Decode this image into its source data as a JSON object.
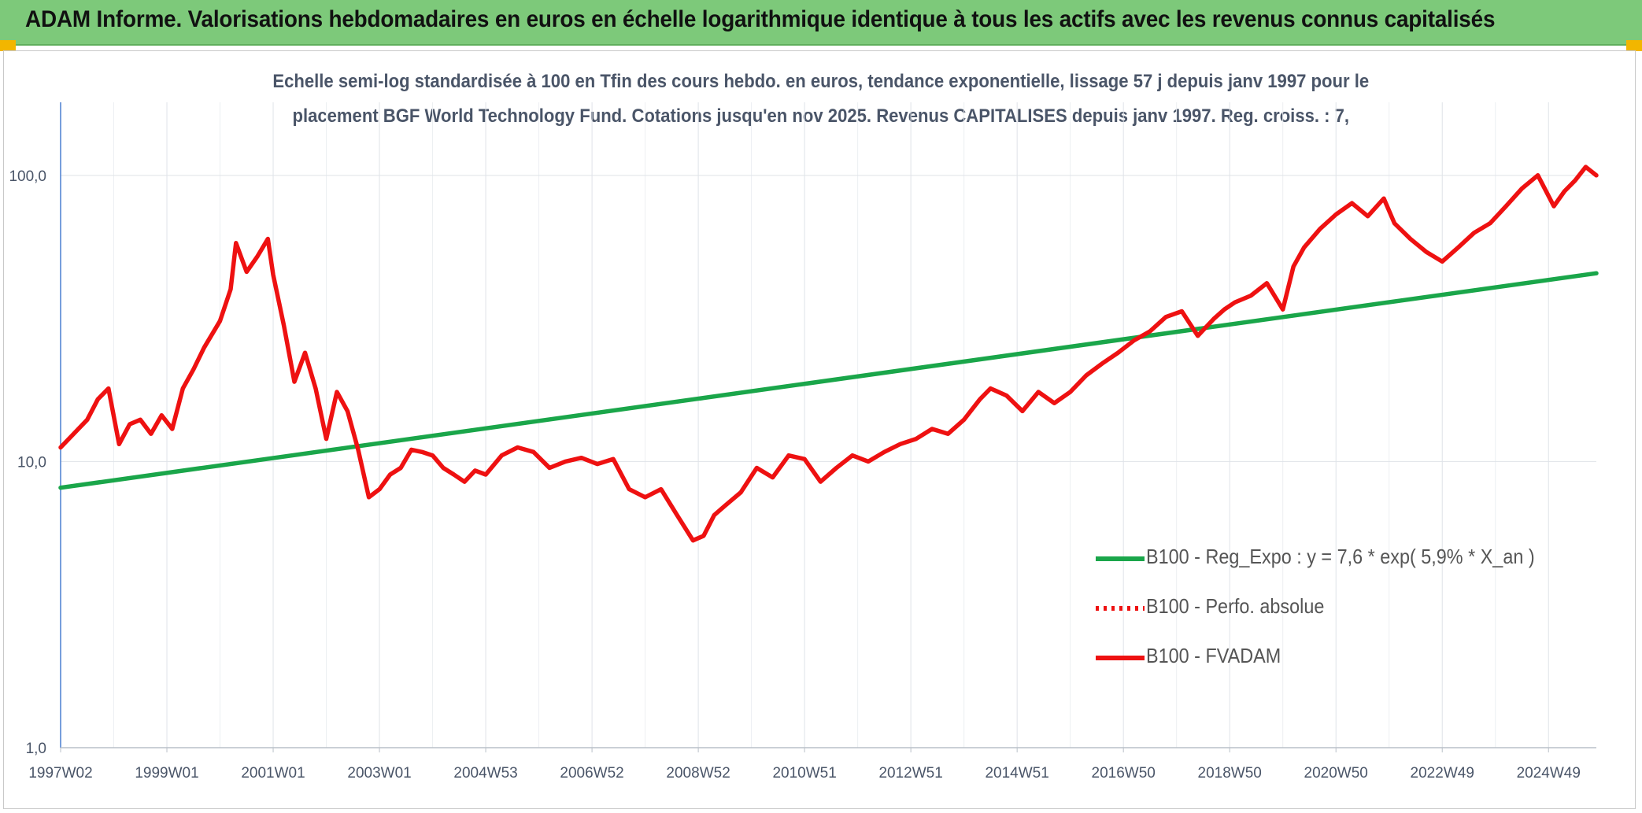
{
  "header": {
    "title": "ADAM Informe. Valorisations hebdomadaires en euros en échelle logarithmique identique à tous les actifs avec les revenus connus capitalisés"
  },
  "colors": {
    "banner": "#7dc97a",
    "green_series": "#1aa64a",
    "red_series": "#ee1111",
    "corner_marks": "#f2b600"
  },
  "chart_data": {
    "type": "line",
    "title_line1": "Echelle semi-log standardisée à 100 en Tfin des cours hebdo. en euros, tendance exponentielle, lissage 57 j depuis janv 1997 pour le",
    "title_line2": "placement BGF World Technology Fund. Cotations jusqu'en nov 2025. Revenus CAPITALISES depuis janv 1997. Reg. croiss. : 7,",
    "y_scale": "log",
    "ylim": [
      1,
      180
    ],
    "y_ticks": [
      {
        "value": 1,
        "label": "1,0"
      },
      {
        "value": 10,
        "label": "10,0"
      },
      {
        "value": 100,
        "label": "100,0"
      }
    ],
    "x_range_years": [
      1997.0,
      2025.9
    ],
    "x_ticks": [
      {
        "year": 1997.0,
        "label": "1997W02"
      },
      {
        "year": 1999.0,
        "label": "1999W01"
      },
      {
        "year": 2001.0,
        "label": "2001W01"
      },
      {
        "year": 2003.0,
        "label": "2003W01"
      },
      {
        "year": 2005.0,
        "label": "2004W53"
      },
      {
        "year": 2007.0,
        "label": "2006W52"
      },
      {
        "year": 2009.0,
        "label": "2008W52"
      },
      {
        "year": 2011.0,
        "label": "2010W51"
      },
      {
        "year": 2013.0,
        "label": "2012W51"
      },
      {
        "year": 2015.0,
        "label": "2014W51"
      },
      {
        "year": 2017.0,
        "label": "2016W50"
      },
      {
        "year": 2019.0,
        "label": "2018W50"
      },
      {
        "year": 2021.0,
        "label": "2020W50"
      },
      {
        "year": 2023.0,
        "label": "2022W49"
      },
      {
        "year": 2025.0,
        "label": "2024W49"
      }
    ],
    "grid": true,
    "legend_position": "lower-right",
    "series": [
      {
        "name": "B100 - Reg_Expo : y = 7,6 * exp( 5,9% *  X_an )",
        "color": "#1aa64a",
        "style": "solid",
        "x": [
          1997.0,
          2025.9
        ],
        "y": [
          8.1,
          45.5
        ]
      },
      {
        "name": "B100 - Perfo. absolue",
        "color": "#ee1111",
        "style": "dotted",
        "x": [],
        "y": []
      },
      {
        "name": "B100 - FVADAM",
        "color": "#ee1111",
        "style": "solid",
        "x": [
          1997.0,
          1997.3,
          1997.5,
          1997.7,
          1997.9,
          1998.1,
          1998.3,
          1998.5,
          1998.7,
          1998.9,
          1999.1,
          1999.3,
          1999.5,
          1999.7,
          2000.0,
          2000.2,
          2000.3,
          2000.5,
          2000.7,
          2000.9,
          2001.0,
          2001.2,
          2001.4,
          2001.6,
          2001.8,
          2002.0,
          2002.2,
          2002.4,
          2002.6,
          2002.8,
          2003.0,
          2003.2,
          2003.4,
          2003.6,
          2003.8,
          2004.0,
          2004.2,
          2004.4,
          2004.6,
          2004.8,
          2005.0,
          2005.3,
          2005.6,
          2005.9,
          2006.2,
          2006.5,
          2006.8,
          2007.1,
          2007.4,
          2007.7,
          2008.0,
          2008.3,
          2008.6,
          2008.9,
          2009.1,
          2009.3,
          2009.5,
          2009.8,
          2010.1,
          2010.4,
          2010.7,
          2011.0,
          2011.3,
          2011.6,
          2011.9,
          2012.2,
          2012.5,
          2012.8,
          2013.1,
          2013.4,
          2013.7,
          2014.0,
          2014.3,
          2014.5,
          2014.8,
          2015.1,
          2015.4,
          2015.7,
          2016.0,
          2016.3,
          2016.6,
          2016.9,
          2017.2,
          2017.5,
          2017.8,
          2018.1,
          2018.4,
          2018.7,
          2018.9,
          2019.1,
          2019.4,
          2019.7,
          2020.0,
          2020.2,
          2020.4,
          2020.7,
          2021.0,
          2021.3,
          2021.6,
          2021.9,
          2022.1,
          2022.4,
          2022.7,
          2023.0,
          2023.3,
          2023.6,
          2023.9,
          2024.2,
          2024.5,
          2024.8,
          2025.1,
          2025.3,
          2025.5,
          2025.7,
          2025.9
        ],
        "y": [
          11.2,
          12.8,
          14.0,
          16.5,
          18.0,
          11.5,
          13.5,
          14.0,
          12.5,
          14.5,
          13.0,
          18.0,
          21.0,
          25.0,
          31.0,
          40.0,
          58.0,
          46.0,
          52.0,
          60.0,
          45.0,
          30.0,
          19.0,
          24.0,
          18.0,
          12.0,
          17.5,
          15.0,
          11.0,
          7.5,
          8.0,
          9.0,
          9.5,
          11.0,
          10.8,
          10.5,
          9.5,
          9.0,
          8.5,
          9.3,
          9.0,
          10.5,
          11.2,
          10.8,
          9.5,
          10.0,
          10.3,
          9.8,
          10.2,
          8.0,
          7.5,
          8.0,
          6.5,
          5.3,
          5.5,
          6.5,
          7.0,
          7.8,
          9.5,
          8.8,
          10.5,
          10.2,
          8.5,
          9.5,
          10.5,
          10.0,
          10.8,
          11.5,
          12.0,
          13.0,
          12.5,
          14.0,
          16.5,
          18.0,
          17.0,
          15.0,
          17.5,
          16.0,
          17.5,
          20.0,
          22.0,
          24.0,
          26.5,
          28.5,
          32.0,
          33.5,
          27.5,
          31.5,
          34.0,
          36.0,
          38.0,
          42.0,
          34.0,
          48.0,
          56.0,
          65.0,
          73.0,
          80.0,
          72.0,
          83.0,
          68.0,
          60.0,
          54.0,
          50.0,
          56.0,
          63.0,
          68.0,
          78.0,
          90.0,
          100.0,
          78.0,
          88.0,
          96.0,
          107.0,
          100.0
        ]
      }
    ]
  }
}
